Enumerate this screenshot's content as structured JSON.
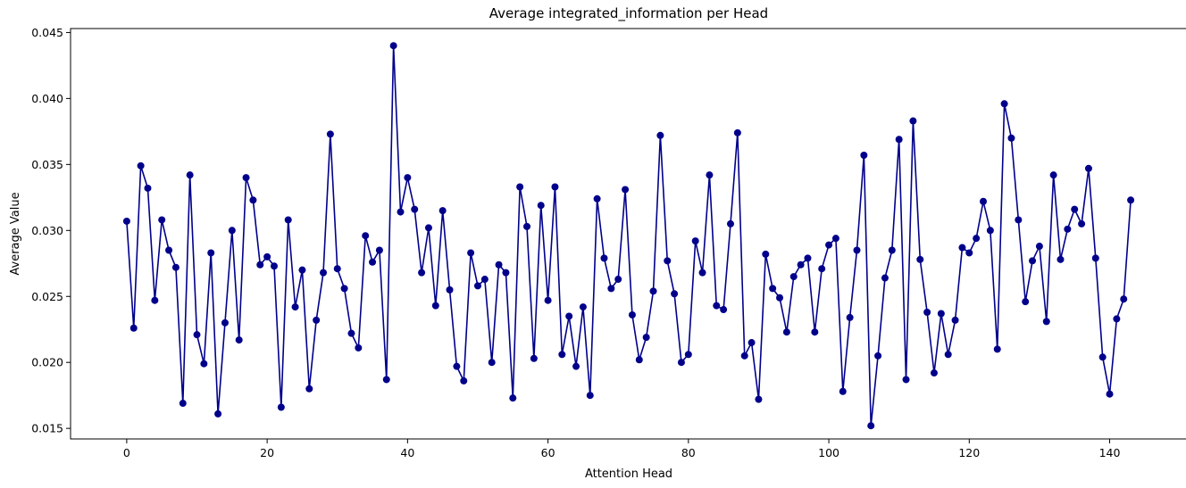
{
  "chart_data": {
    "type": "line",
    "title": "Average integrated_information per Head",
    "xlabel": "Attention Head",
    "ylabel": "Average Value",
    "xlim": [
      -8,
      151
    ],
    "ylim": [
      0.0142,
      0.0453
    ],
    "xticks": [
      0,
      20,
      40,
      60,
      80,
      100,
      120,
      140
    ],
    "yticks": [
      0.015,
      0.02,
      0.025,
      0.03,
      0.035,
      0.04,
      0.045
    ],
    "ytick_labels": [
      "0.015",
      "0.020",
      "0.025",
      "0.030",
      "0.035",
      "0.040",
      "0.045"
    ],
    "grid": false,
    "legend": "none",
    "marker": "circle",
    "color": "#00008b",
    "series": [
      {
        "values": [
          0.0307,
          0.0226,
          0.0349,
          0.0332,
          0.0247,
          0.0308,
          0.0285,
          0.0272,
          0.0169,
          0.0342,
          0.0221,
          0.0199,
          0.0283,
          0.0161,
          0.023,
          0.03,
          0.0217,
          0.034,
          0.0323,
          0.0274,
          0.028,
          0.0273,
          0.0166,
          0.0308,
          0.0242,
          0.027,
          0.018,
          0.0232,
          0.0268,
          0.0373,
          0.0271,
          0.0256,
          0.0222,
          0.0211,
          0.0296,
          0.0276,
          0.0285,
          0.0187,
          0.044,
          0.0314,
          0.034,
          0.0316,
          0.0268,
          0.0302,
          0.0243,
          0.0315,
          0.0255,
          0.0197,
          0.0186,
          0.0283,
          0.0258,
          0.0263,
          0.02,
          0.0274,
          0.0268,
          0.0173,
          0.0333,
          0.0303,
          0.0203,
          0.0319,
          0.0247,
          0.0333,
          0.0206,
          0.0235,
          0.0197,
          0.0242,
          0.0175,
          0.0324,
          0.0279,
          0.0256,
          0.0263,
          0.0331,
          0.0236,
          0.0202,
          0.0219,
          0.0254,
          0.0372,
          0.0277,
          0.0252,
          0.02,
          0.0206,
          0.0292,
          0.0268,
          0.0342,
          0.0243,
          0.024,
          0.0305,
          0.0374,
          0.0205,
          0.0215,
          0.0172,
          0.0282,
          0.0256,
          0.0249,
          0.0223,
          0.0265,
          0.0274,
          0.0279,
          0.0223,
          0.0271,
          0.0289,
          0.0294,
          0.0178,
          0.0234,
          0.0285,
          0.0357,
          0.0152,
          0.0205,
          0.0264,
          0.0285,
          0.0369,
          0.0187,
          0.0383,
          0.0278,
          0.0238,
          0.0192,
          0.0237,
          0.0206,
          0.0232,
          0.0287,
          0.0283,
          0.0294,
          0.0322,
          0.03,
          0.021,
          0.0396,
          0.037,
          0.0308,
          0.0246,
          0.0277,
          0.0288,
          0.0231,
          0.0342,
          0.0278,
          0.0301,
          0.0316,
          0.0305,
          0.0347,
          0.0279,
          0.0204,
          0.0176,
          0.0233,
          0.0248,
          0.0323
        ]
      }
    ]
  }
}
